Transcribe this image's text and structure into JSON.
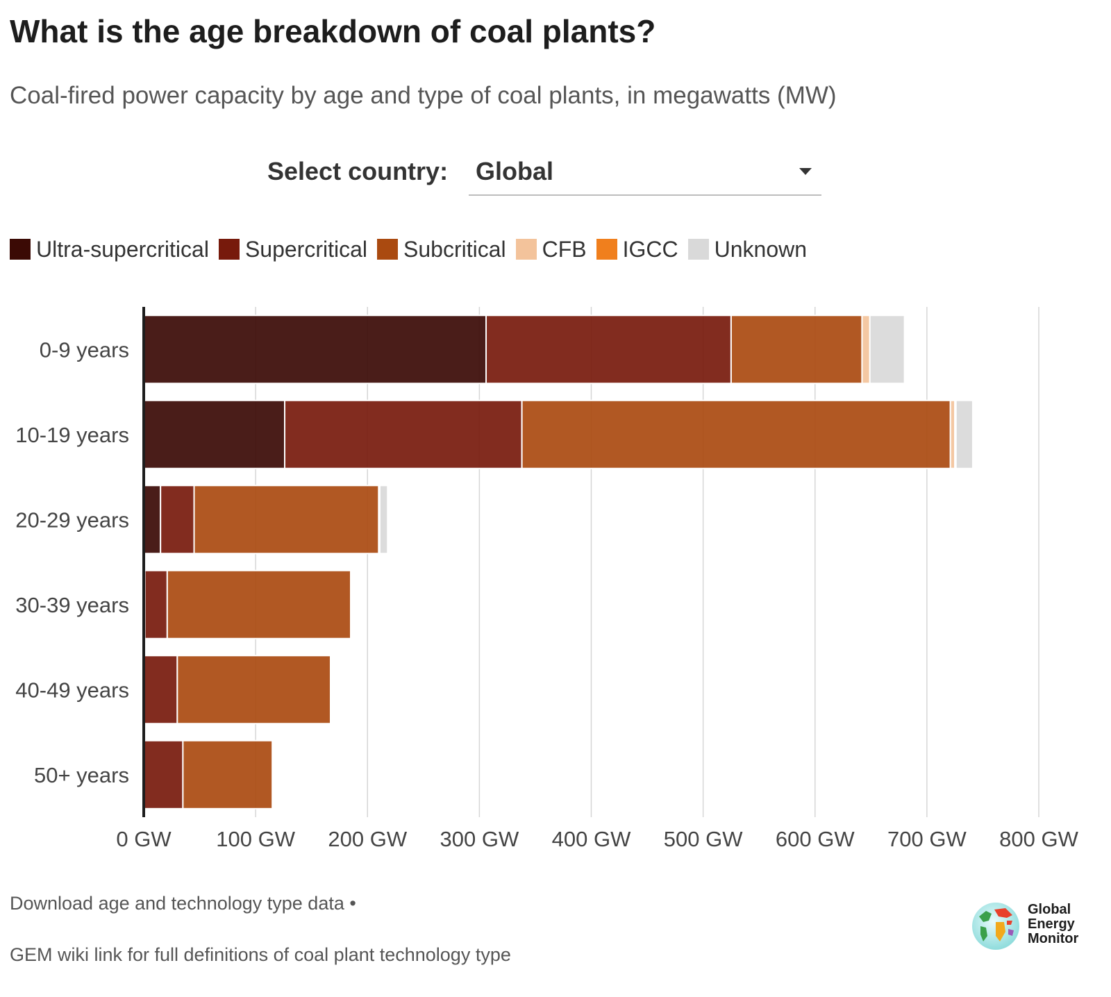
{
  "header": {
    "title": "What is the age breakdown of coal plants?",
    "subtitle": "Coal-fired power capacity by age and type of coal plants, in megawatts (MW)"
  },
  "selector": {
    "label": "Select country:",
    "value": "Global"
  },
  "footer": {
    "download_link": "Download age and technology type data",
    "separator": "•",
    "wiki_link": "GEM wiki link for full definitions of coal plant technology type"
  },
  "logo": {
    "line1": "Global",
    "line2": "Energy",
    "line3": "Monitor"
  },
  "chart_data": {
    "type": "bar",
    "orientation": "horizontal",
    "stacked": true,
    "categories": [
      "0-9 years",
      "10-19 years",
      "20-29 years",
      "30-39 years",
      "40-49 years",
      "50+ years"
    ],
    "series": [
      {
        "name": "Ultra-supercritical",
        "color": "#3b0a05",
        "values": [
          306,
          126,
          15,
          1,
          0,
          0
        ]
      },
      {
        "name": "Supercritical",
        "color": "#771a0c",
        "values": [
          219,
          212,
          30,
          20,
          30,
          35
        ]
      },
      {
        "name": "Subcritical",
        "color": "#aa4a10",
        "values": [
          117,
          383,
          165,
          164,
          137,
          80
        ]
      },
      {
        "name": "CFB",
        "color": "#f3c39b",
        "values": [
          7,
          4,
          1,
          1,
          1,
          1
        ]
      },
      {
        "name": "IGCC",
        "color": "#f07f1d",
        "values": [
          0,
          1,
          0,
          0,
          0,
          0
        ]
      },
      {
        "name": "Unknown",
        "color": "#d9d9d9",
        "values": [
          31,
          15,
          7,
          1,
          1,
          1
        ]
      }
    ],
    "xlim": [
      0,
      800
    ],
    "x_ticks": [
      "0 GW",
      "100 GW",
      "200 GW",
      "300 GW",
      "400 GW",
      "500 GW",
      "600 GW",
      "700 GW",
      "800 GW"
    ],
    "grid": true,
    "legend_position": "top-left"
  }
}
